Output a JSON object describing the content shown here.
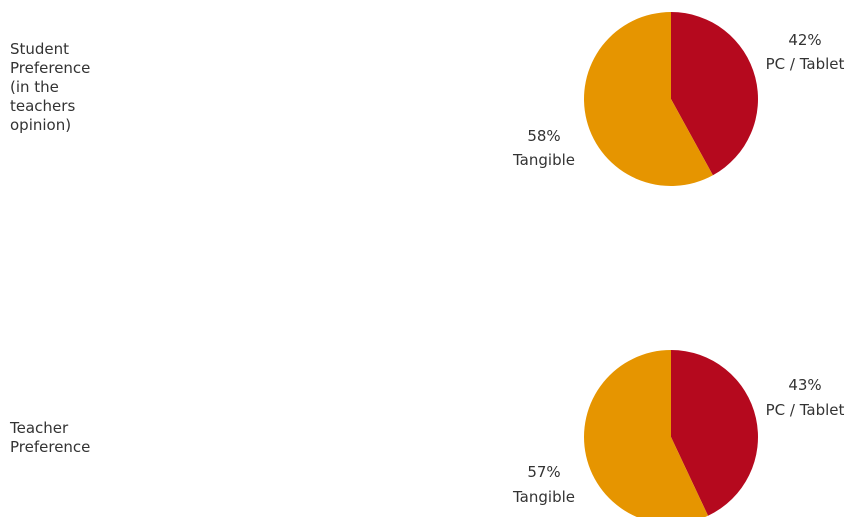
{
  "colors": {
    "pc_tablet": "#B5091E",
    "tangible": "#E69500"
  },
  "chart_data": [
    {
      "type": "pie",
      "row_label": "Student\nPreference\n(in the\nteachers\nopinion)",
      "slices": [
        {
          "label": "PC / Tablet",
          "value": 42,
          "value_text": "42%",
          "color": "#B5091E"
        },
        {
          "label": "Tangible",
          "value": 58,
          "value_text": "58%",
          "color": "#E69500"
        }
      ]
    },
    {
      "type": "pie",
      "row_label": "Teacher\nPreference",
      "slices": [
        {
          "label": "PC / Tablet",
          "value": 43,
          "value_text": "43%",
          "color": "#B5091E"
        },
        {
          "label": "Tangible",
          "value": 57,
          "value_text": "57%",
          "color": "#E69500"
        }
      ]
    }
  ]
}
